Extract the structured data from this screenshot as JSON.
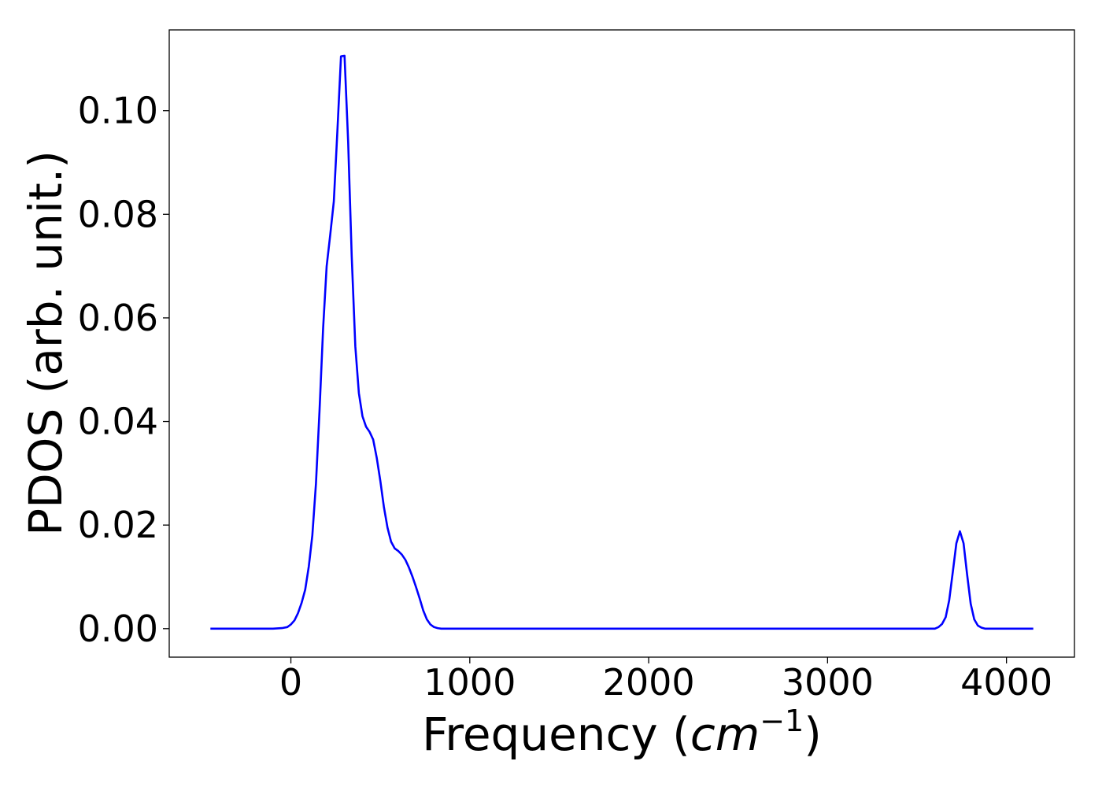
{
  "chart_data": {
    "type": "line",
    "title": "",
    "xlabel": {
      "prefix": "Frequency (",
      "symbol": "cm",
      "exponent": "−1",
      "suffix": ")"
    },
    "ylabel": "PDOS (arb. unit.)",
    "xlim": [
      -680,
      4380
    ],
    "ylim": [
      -0.0055,
      0.1156
    ],
    "grid": false,
    "legend": null,
    "x_ticks": [
      0,
      1000,
      2000,
      3000,
      4000
    ],
    "x_tick_labels": [
      "0",
      "1000",
      "2000",
      "3000",
      "4000"
    ],
    "y_ticks": [
      0.0,
      0.02,
      0.04,
      0.06,
      0.08,
      0.1
    ],
    "y_tick_labels": [
      "0.00",
      "0.02",
      "0.04",
      "0.06",
      "0.08",
      "0.10"
    ],
    "series": [
      {
        "color": "#0000ff",
        "x": [
          -450,
          -100,
          -50,
          -20,
          0,
          20,
          40,
          60,
          80,
          100,
          120,
          140,
          160,
          180,
          200,
          220,
          240,
          260,
          280,
          300,
          320,
          340,
          360,
          380,
          400,
          420,
          440,
          460,
          480,
          500,
          520,
          540,
          560,
          580,
          600,
          620,
          640,
          660,
          680,
          700,
          720,
          740,
          760,
          780,
          800,
          820,
          840,
          860,
          880,
          900,
          920,
          950,
          1000,
          3500,
          3600,
          3620,
          3640,
          3660,
          3680,
          3700,
          3720,
          3740,
          3760,
          3780,
          3800,
          3820,
          3840,
          3860,
          3880,
          3900,
          3950,
          4150
        ],
        "y": [
          0.0,
          0.0,
          0.0001,
          0.0003,
          0.0008,
          0.0016,
          0.003,
          0.005,
          0.0075,
          0.012,
          0.018,
          0.028,
          0.042,
          0.058,
          0.07,
          0.076,
          0.0825,
          0.096,
          0.1105,
          0.1106,
          0.094,
          0.072,
          0.0545,
          0.0455,
          0.041,
          0.039,
          0.038,
          0.0365,
          0.033,
          0.0285,
          0.0235,
          0.0195,
          0.0168,
          0.0155,
          0.015,
          0.0143,
          0.0133,
          0.0118,
          0.01,
          0.008,
          0.0058,
          0.0035,
          0.0018,
          0.0008,
          0.0003,
          0.0001,
          0.0,
          0.0,
          0.0,
          0.0,
          0.0,
          0.0,
          0.0,
          0.0,
          0.0,
          0.0003,
          0.0009,
          0.0022,
          0.0055,
          0.011,
          0.0165,
          0.0188,
          0.0165,
          0.0105,
          0.0048,
          0.0018,
          0.0006,
          0.0002,
          0.0,
          0.0,
          0.0,
          0.0
        ]
      }
    ]
  }
}
